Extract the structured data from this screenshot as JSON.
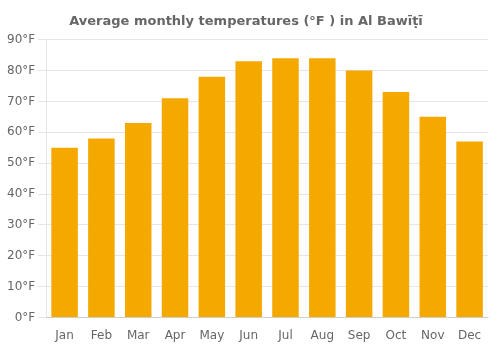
{
  "chart_data": {
    "type": "bar",
    "title": "Average monthly temperatures (°F ) in Al Bawīṭī",
    "categories": [
      "Jan",
      "Feb",
      "Mar",
      "Apr",
      "May",
      "Jun",
      "Jul",
      "Aug",
      "Sep",
      "Oct",
      "Nov",
      "Dec"
    ],
    "values": [
      55,
      58,
      63,
      71,
      78,
      83,
      84,
      84,
      80,
      73,
      65,
      57
    ],
    "color": "#F5A800",
    "ylim": [
      0,
      90
    ],
    "yticks": [
      {
        "value": 0,
        "label": "0°F"
      },
      {
        "value": 10,
        "label": "10°F"
      },
      {
        "value": 20,
        "label": "20°F"
      },
      {
        "value": 30,
        "label": "30°F"
      },
      {
        "value": 40,
        "label": "40°F"
      },
      {
        "value": 50,
        "label": "50°F"
      },
      {
        "value": 60,
        "label": "60°F"
      },
      {
        "value": 70,
        "label": "70°F"
      },
      {
        "value": 80,
        "label": "80°F"
      },
      {
        "value": 90,
        "label": "90°F"
      }
    ],
    "grid": true
  }
}
